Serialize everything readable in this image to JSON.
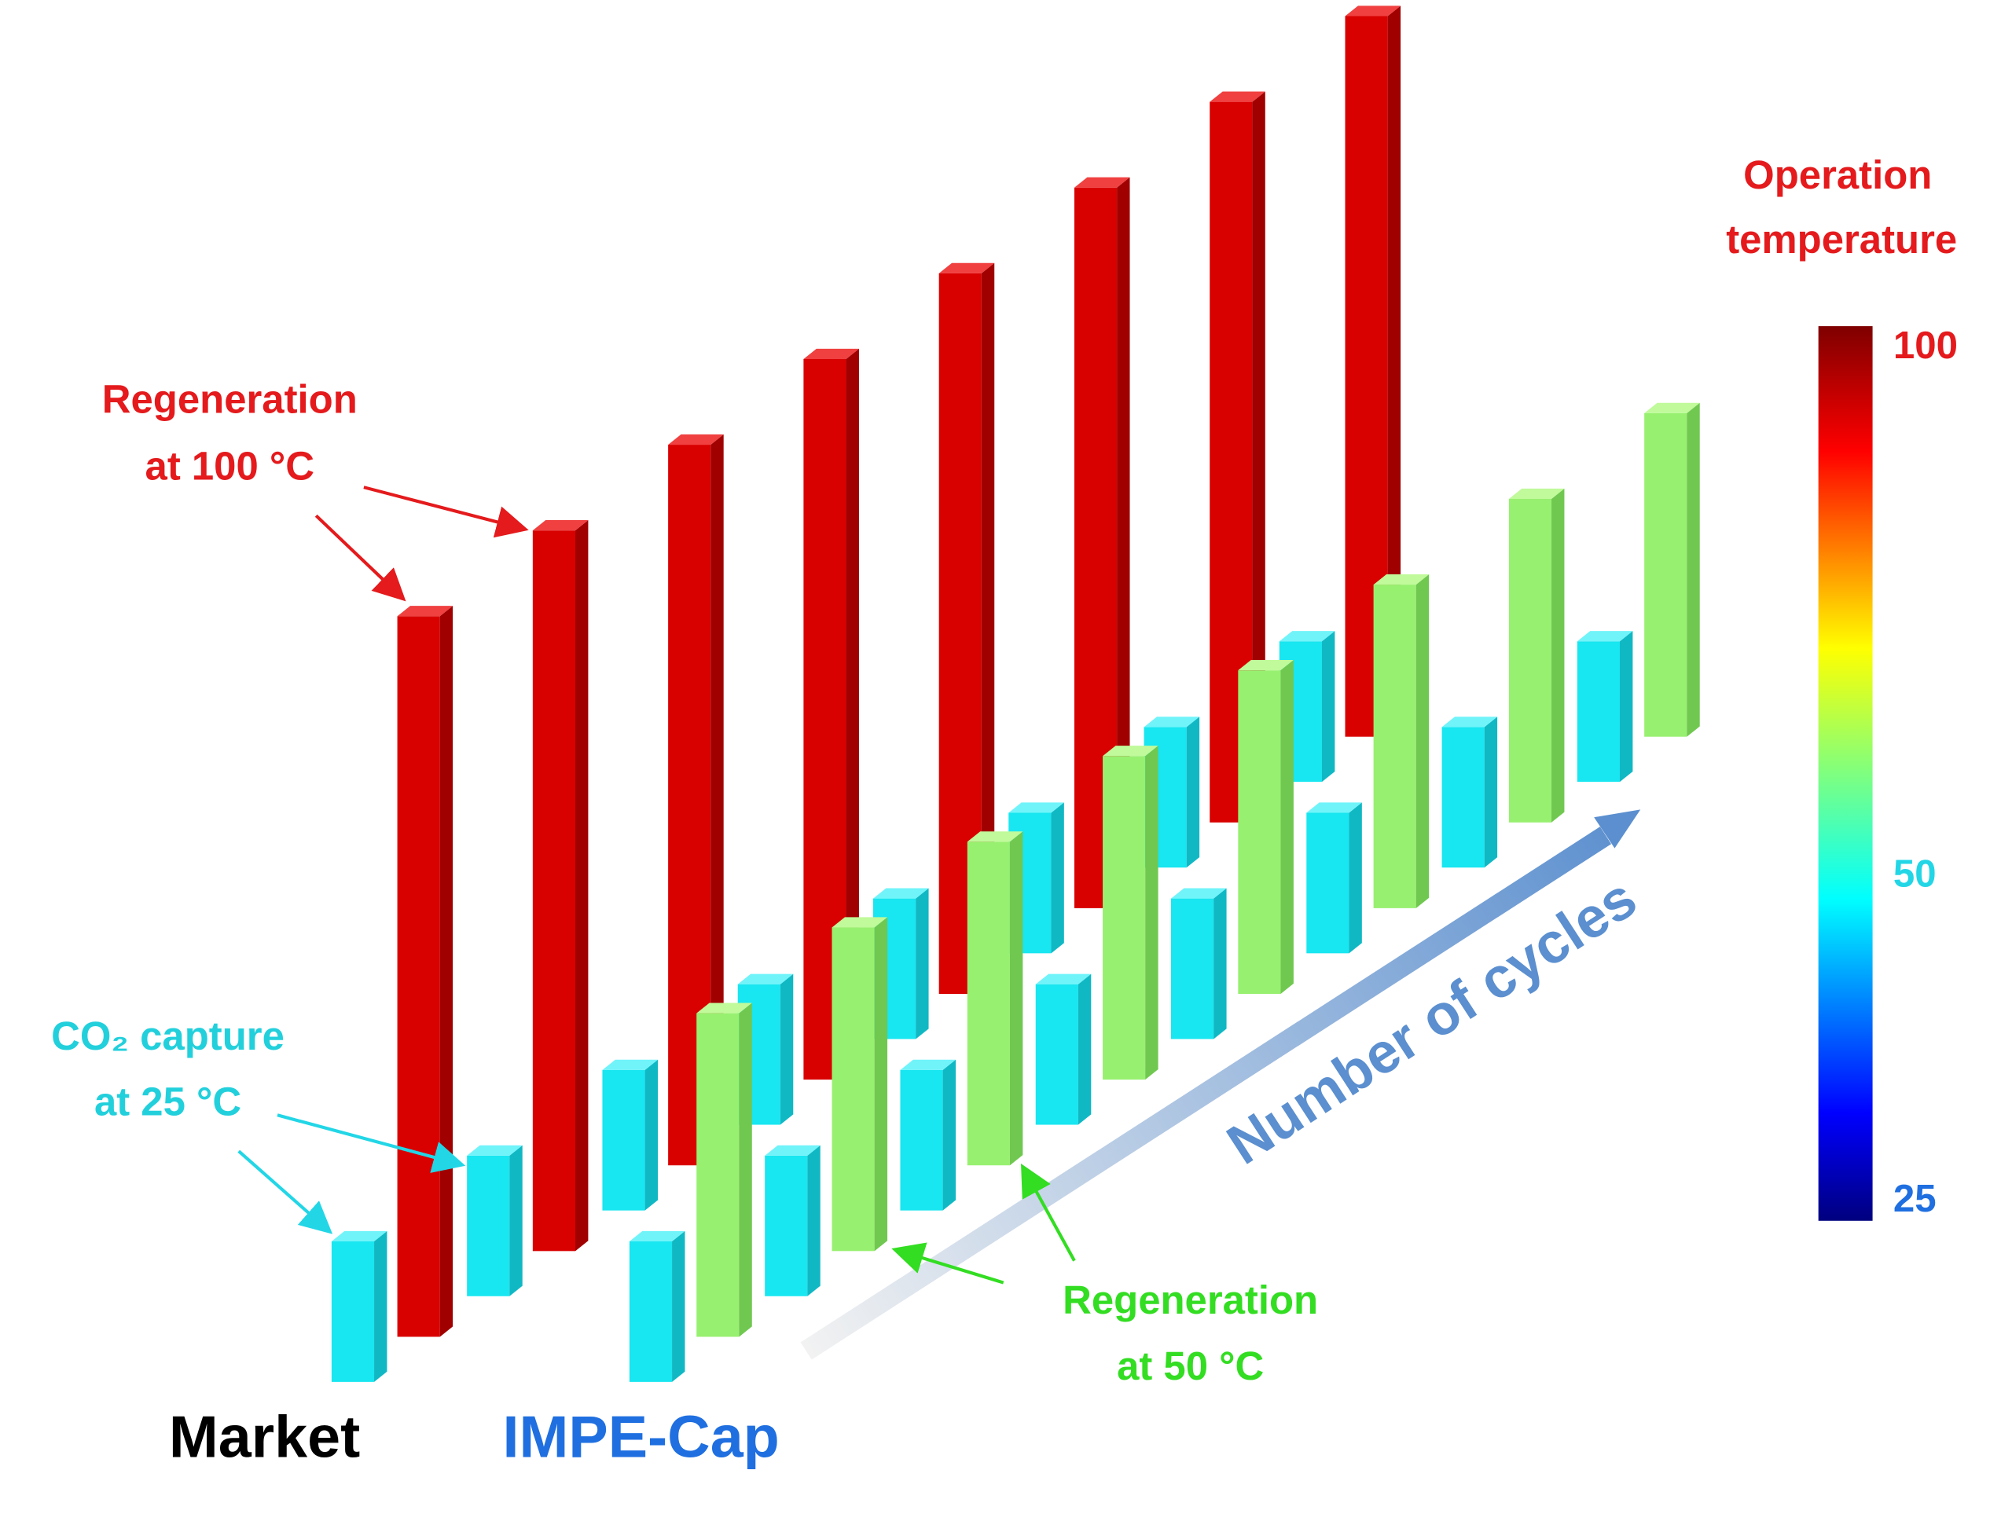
{
  "annotations": {
    "regen100": [
      "Regeneration",
      "at 100 °C"
    ],
    "capture25": [
      "CO₂ capture",
      "at 25 °C"
    ],
    "regen50": [
      "Regeneration",
      "at 50 °C"
    ]
  },
  "groups": [
    "Market",
    "IMPE-Cap"
  ],
  "axis_label": "Number of cycles",
  "colorbar": {
    "title": [
      "Operation",
      "temperature"
    ],
    "ticks": [
      "100",
      "50",
      "25"
    ]
  }
}
